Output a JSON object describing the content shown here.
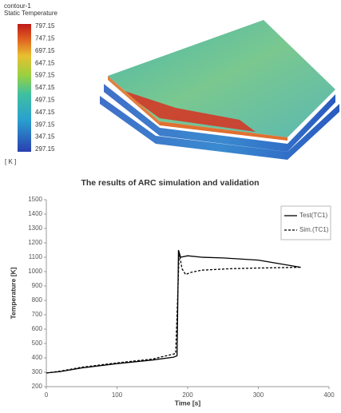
{
  "contour": {
    "title": "contour-1",
    "subtitle": "Static Temperature",
    "colorbar_labels": [
      797.15,
      747.15,
      697.15,
      647.15,
      597.15,
      547.15,
      497.15,
      447.15,
      397.15,
      347.15,
      297.15
    ],
    "unit": "[ K ]"
  },
  "chart_data": {
    "type": "line",
    "title": "The results of ARC simulation and validation",
    "x_label": "Time [s]",
    "y_label": "Temperature [K]",
    "xlim": [
      0,
      400
    ],
    "xticks": [
      0,
      100,
      200,
      300,
      400
    ],
    "ylim": [
      200,
      1500
    ],
    "yticks": [
      200,
      300,
      400,
      500,
      600,
      700,
      800,
      900,
      1000,
      1100,
      1200,
      1300,
      1400,
      1500
    ],
    "legend": "upper right",
    "series": [
      {
        "name": "Test(TC1)",
        "color": "#000000",
        "dash": "solid",
        "x": [
          0,
          20,
          50,
          100,
          150,
          180,
          185,
          187,
          190,
          200,
          220,
          250,
          300,
          360
        ],
        "values": [
          295,
          305,
          330,
          360,
          385,
          405,
          415,
          1150,
          1100,
          1110,
          1100,
          1095,
          1080,
          1030
        ]
      },
      {
        "name": "Sim.(TC1)",
        "color": "#000000",
        "dash": "dashed",
        "x": [
          0,
          20,
          50,
          100,
          150,
          183,
          188,
          192,
          197,
          205,
          220,
          260,
          300,
          360
        ],
        "values": [
          295,
          308,
          335,
          365,
          392,
          430,
          1130,
          1020,
          980,
          995,
          1010,
          1020,
          1025,
          1030
        ]
      }
    ]
  }
}
